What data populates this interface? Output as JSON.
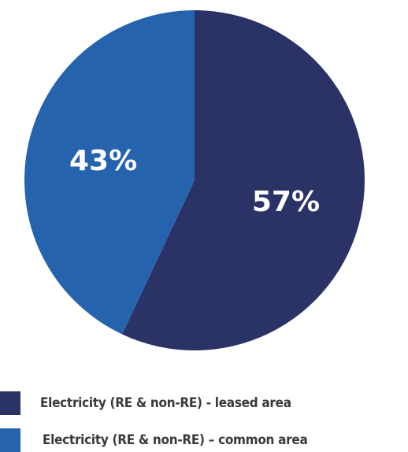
{
  "chart_data": {
    "type": "pie",
    "slices": [
      {
        "label": "Electricity (RE & non-RE) - leased area",
        "value": 57,
        "display": "57%",
        "color": "#2a3266"
      },
      {
        "label": "Electricity (RE & non-RE) – common area",
        "value": 43,
        "display": "43%",
        "color": "#2563ac"
      }
    ],
    "legend": {
      "position": "bottom"
    }
  }
}
